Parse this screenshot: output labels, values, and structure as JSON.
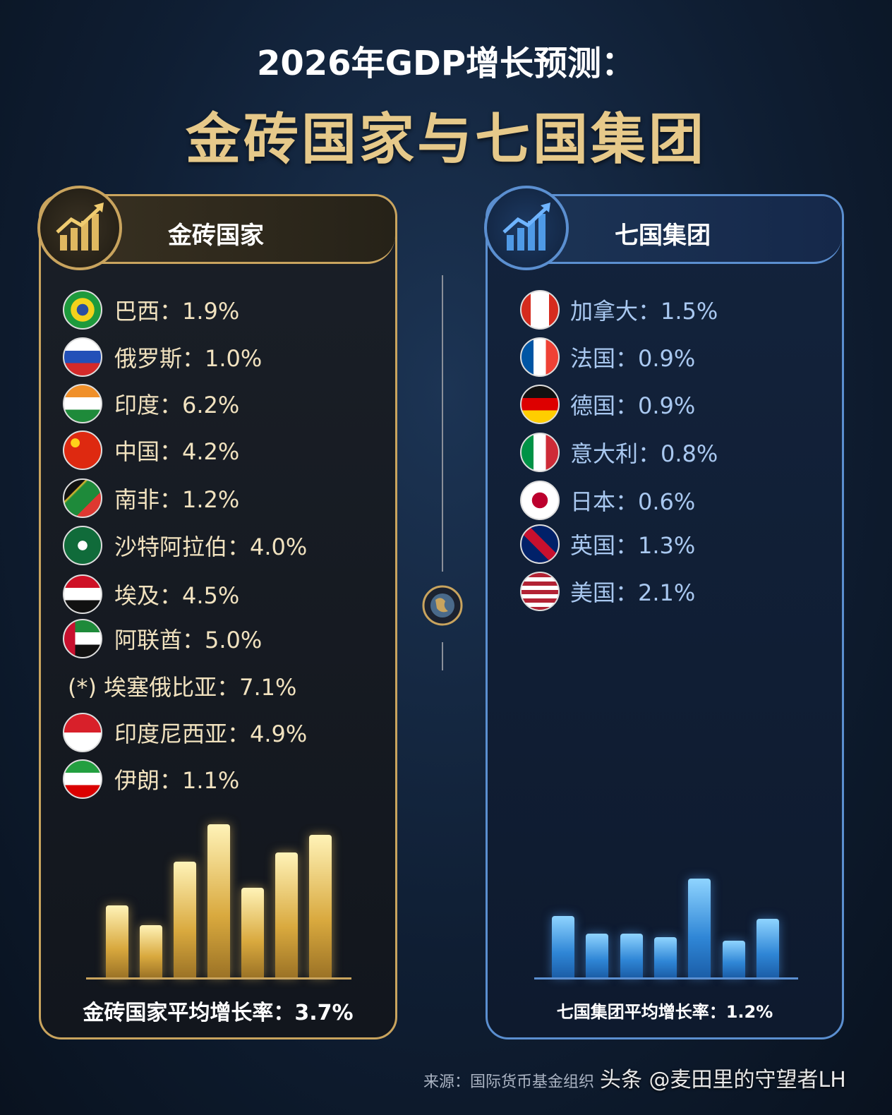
{
  "header": {
    "title": "2026年GDP增长预测：",
    "subtitle": "金砖国家与七国集团"
  },
  "brics": {
    "title": "金砖国家",
    "items": [
      "巴西：1.9%",
      "俄罗斯：1.0%",
      "印度：6.2%",
      "中国：4.2%",
      "南非：1.2%",
      "沙特阿拉伯：4.0%",
      "埃及：4.5%",
      "阿联酋：5.0%",
      "(*) 埃塞俄比亚：7.1%",
      "印度尼西亚：4.9%",
      "伊朗：1.1%"
    ],
    "average": "金砖国家平均增长率：3.7%"
  },
  "g7": {
    "title": "七国集团",
    "items": [
      "加拿大：1.5%",
      "法国：0.9%",
      "德国：0.9%",
      "意大利：0.8%",
      "日本：0.6%",
      "英国：1.3%",
      "美国：2.1%"
    ],
    "average": "七国集团平均增长率：1.2%"
  },
  "footer": {
    "source": "来源：国际货币基金组织",
    "watermark": "头条 @麦田里的守望者LH"
  }
}
